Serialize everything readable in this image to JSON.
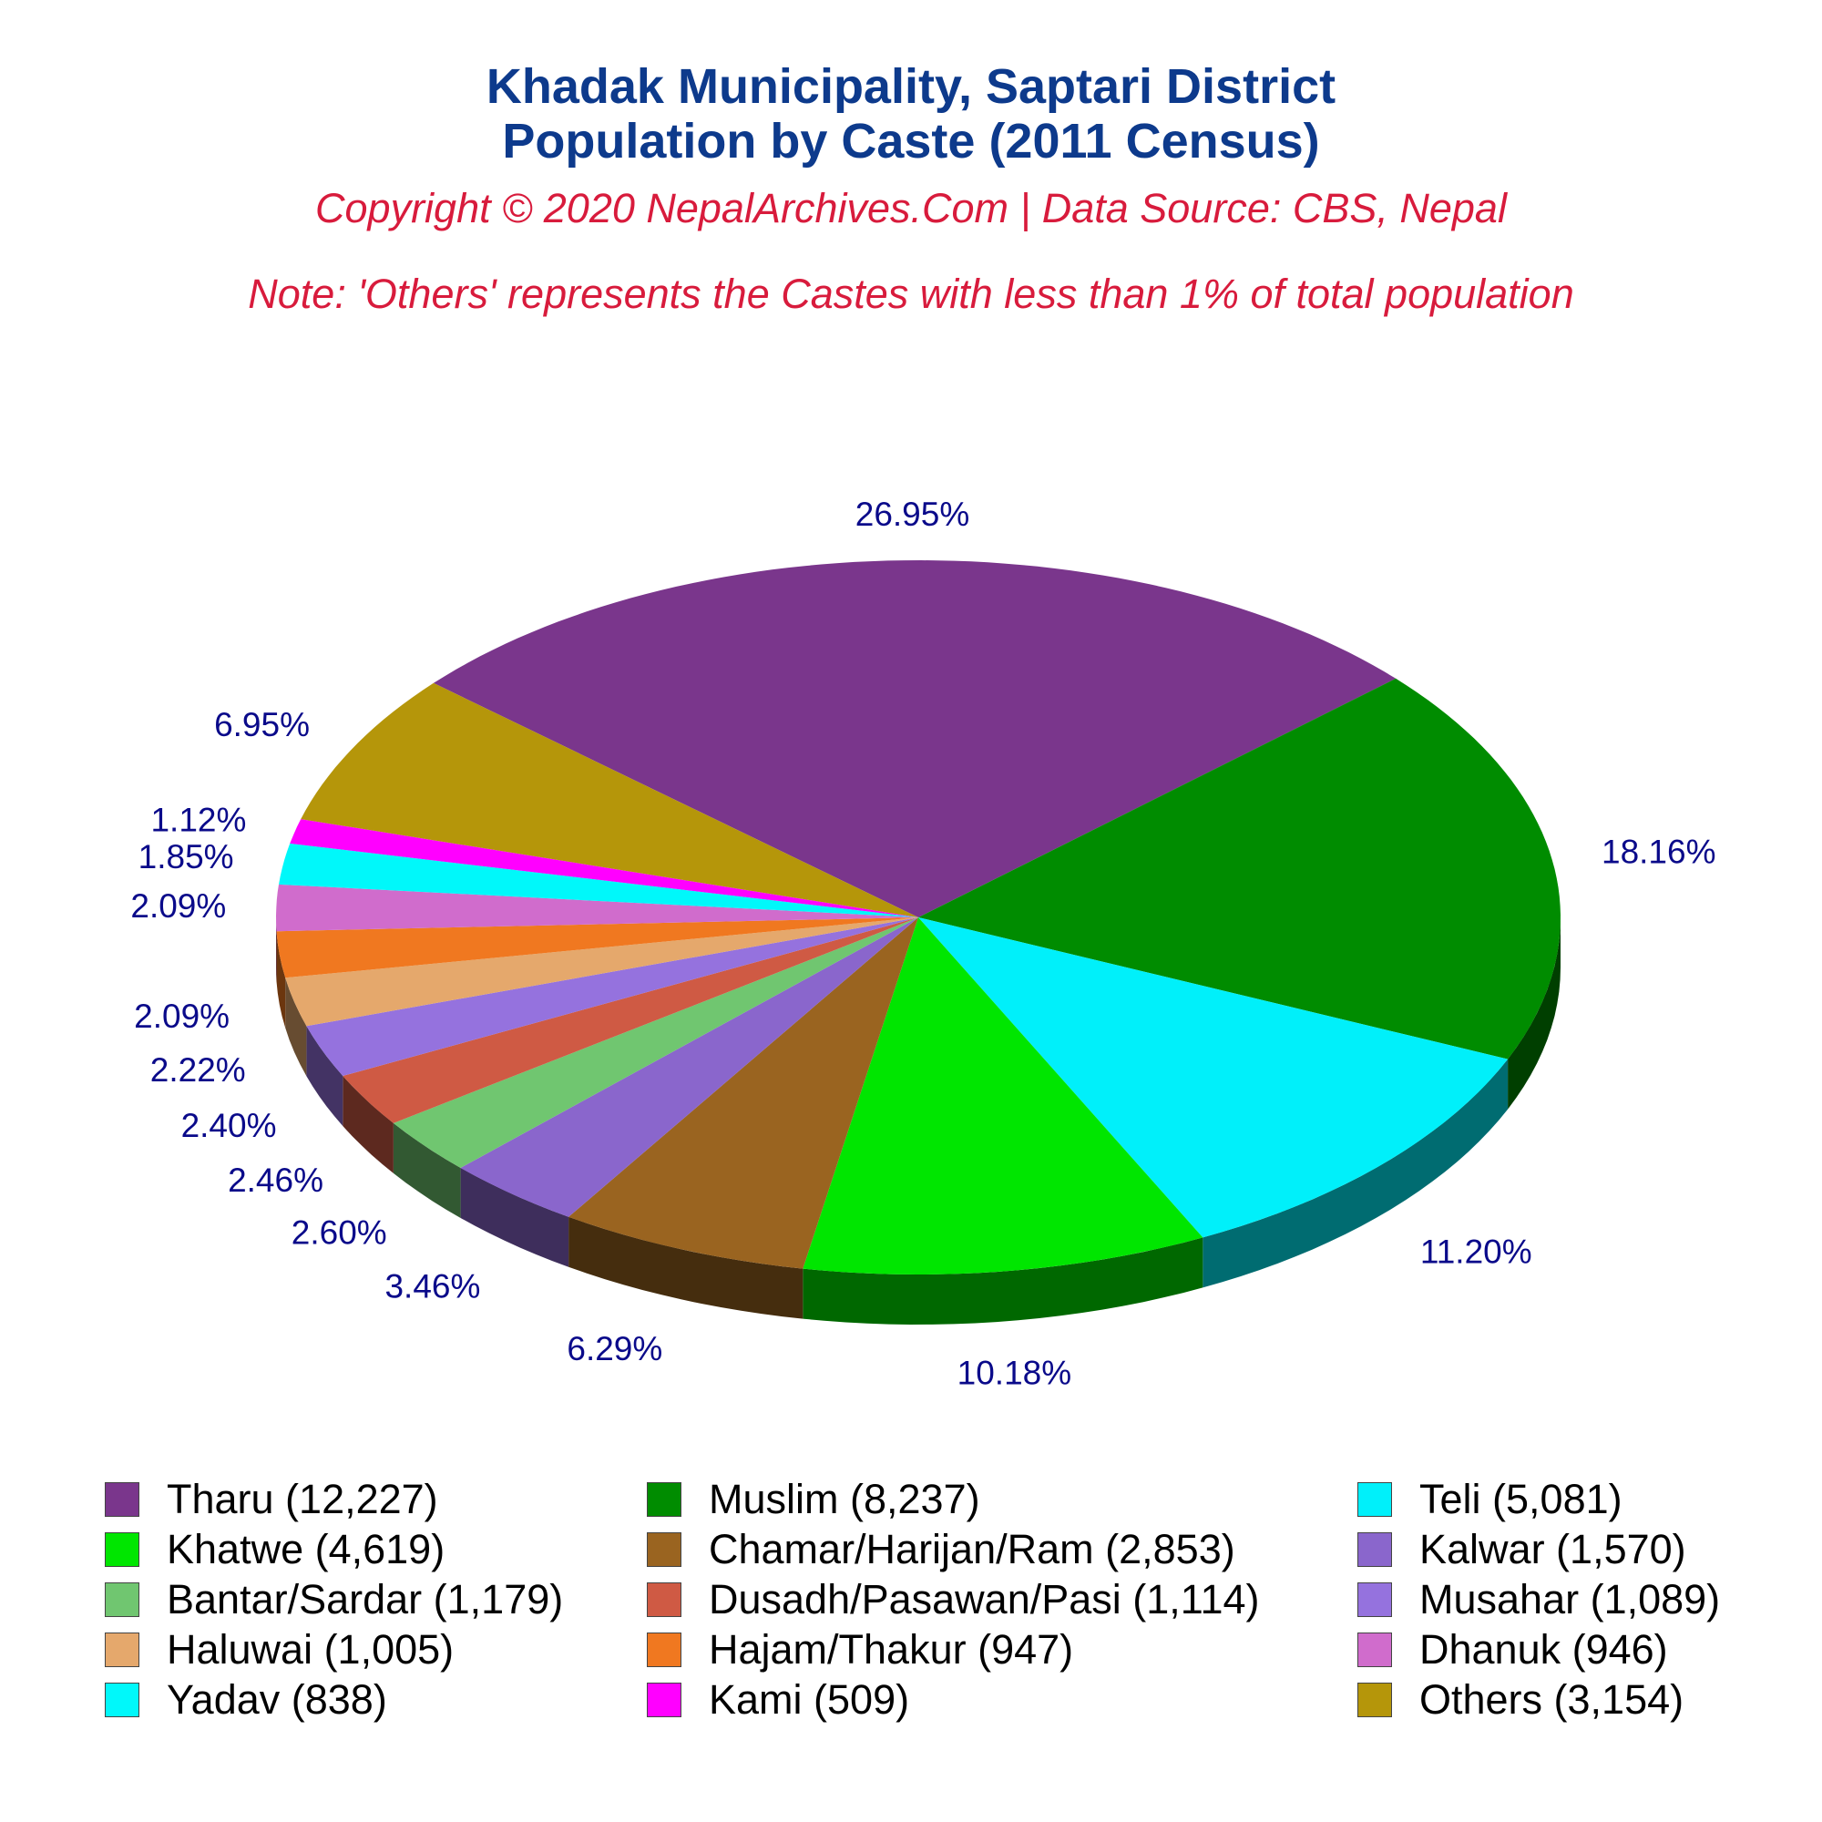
{
  "title_line1": "Khadak Municipality, Saptari District",
  "title_line2": "Population by Caste (2011 Census)",
  "copyright": "Copyright © 2020 NepalArchives.Com | Data Source: CBS, Nepal",
  "note": "Note: 'Others' represents the Castes with less than 1% of total population",
  "chart_data": {
    "type": "pie",
    "title": "Khadak Municipality, Saptari District Population by Caste (2011 Census)",
    "slices": [
      {
        "label": "Tharu (12,227)",
        "value": 12227,
        "percent": "26.95%",
        "color": "#7a368c"
      },
      {
        "label": "Muslim (8,237)",
        "value": 8237,
        "percent": "18.16%",
        "color": "#008c00"
      },
      {
        "label": "Teli (5,081)",
        "value": 5081,
        "percent": "11.20%",
        "color": "#00f0fa"
      },
      {
        "label": "Khatwe (4,619)",
        "value": 4619,
        "percent": "10.18%",
        "color": "#00e600"
      },
      {
        "label": "Chamar/Harijan/Ram (2,853)",
        "value": 2853,
        "percent": "6.29%",
        "color": "#9a6420"
      },
      {
        "label": "Kalwar (1,570)",
        "value": 1570,
        "percent": "3.46%",
        "color": "#8a66cc"
      },
      {
        "label": "Bantar/Sardar (1,179)",
        "value": 1179,
        "percent": "2.60%",
        "color": "#70c670"
      },
      {
        "label": "Dusadh/Pasawan/Pasi (1,114)",
        "value": 1114,
        "percent": "2.46%",
        "color": "#cf5a44"
      },
      {
        "label": "Musahar (1,089)",
        "value": 1089,
        "percent": "2.40%",
        "color": "#9572de"
      },
      {
        "label": "Haluwai (1,005)",
        "value": 1005,
        "percent": "2.22%",
        "color": "#e5a86c"
      },
      {
        "label": "Hajam/Thakur (947)",
        "value": 947,
        "percent": "2.09%",
        "color": "#f07820"
      },
      {
        "label": "Dhanuk (946)",
        "value": 946,
        "percent": "2.09%",
        "color": "#d06ccc"
      },
      {
        "label": "Yadav (838)",
        "value": 838,
        "percent": "1.85%",
        "color": "#00f8fa"
      },
      {
        "label": "Kami (509)",
        "value": 509,
        "percent": "1.12%",
        "color": "#ff00ff"
      },
      {
        "label": "Others (3,154)",
        "value": 3154,
        "percent": "6.95%",
        "color": "#b5960a"
      }
    ],
    "legend_position": "bottom"
  },
  "legend_order": [
    0,
    1,
    2,
    3,
    4,
    5,
    6,
    7,
    8,
    9,
    10,
    11,
    12,
    13,
    14
  ]
}
